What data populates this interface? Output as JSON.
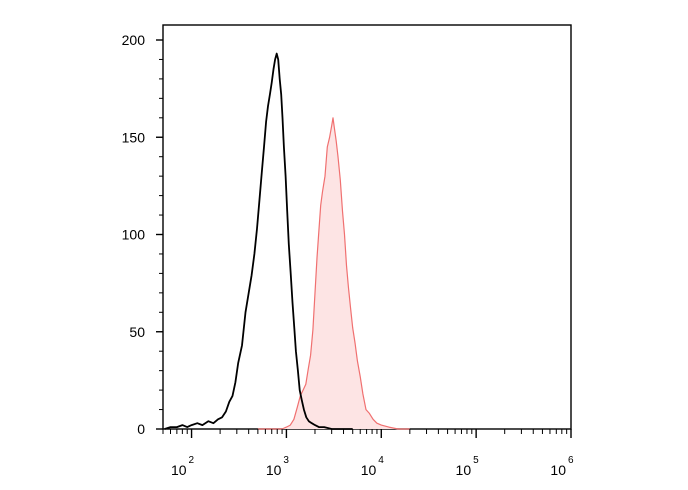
{
  "chart_data": {
    "type": "area",
    "title": "",
    "xlabel": "",
    "ylabel": "",
    "x_scale": "log10",
    "xlim": [
      50,
      1000000
    ],
    "ylim": [
      0,
      200
    ],
    "y_ticks": [
      {
        "value": 0,
        "label": "0"
      },
      {
        "value": 50,
        "label": "50"
      },
      {
        "value": 100,
        "label": "100"
      },
      {
        "value": 150,
        "label": "150"
      },
      {
        "value": 200,
        "label": "200"
      }
    ],
    "x_ticks": [
      {
        "value": 100,
        "base": "10",
        "exp": "2"
      },
      {
        "value": 1000,
        "base": "10",
        "exp": "3"
      },
      {
        "value": 10000,
        "base": "10",
        "exp": "4"
      },
      {
        "value": 100000,
        "base": "10",
        "exp": "5"
      },
      {
        "value": 1000000,
        "base": "10",
        "exp": "6"
      }
    ],
    "grid": false,
    "legend": "none",
    "series": [
      {
        "color": "#000000",
        "fill": "none",
        "points": [
          [
            52,
            0
          ],
          [
            60,
            1
          ],
          [
            70,
            1
          ],
          [
            80,
            2
          ],
          [
            90,
            1
          ],
          [
            100,
            2
          ],
          [
            115,
            3
          ],
          [
            130,
            2
          ],
          [
            150,
            4
          ],
          [
            170,
            3
          ],
          [
            190,
            5
          ],
          [
            210,
            6
          ],
          [
            230,
            9
          ],
          [
            250,
            14
          ],
          [
            270,
            17
          ],
          [
            290,
            24
          ],
          [
            310,
            34
          ],
          [
            340,
            43
          ],
          [
            370,
            60
          ],
          [
            400,
            70
          ],
          [
            430,
            79
          ],
          [
            460,
            90
          ],
          [
            490,
            103
          ],
          [
            520,
            118
          ],
          [
            550,
            132
          ],
          [
            580,
            145
          ],
          [
            610,
            158
          ],
          [
            640,
            166
          ],
          [
            670,
            172
          ],
          [
            700,
            178
          ],
          [
            730,
            185
          ],
          [
            760,
            190
          ],
          [
            790,
            193
          ],
          [
            820,
            190
          ],
          [
            850,
            180
          ],
          [
            880,
            172
          ],
          [
            910,
            160
          ],
          [
            940,
            145
          ],
          [
            980,
            130
          ],
          [
            1020,
            112
          ],
          [
            1060,
            95
          ],
          [
            1110,
            80
          ],
          [
            1160,
            65
          ],
          [
            1210,
            52
          ],
          [
            1260,
            40
          ],
          [
            1320,
            30
          ],
          [
            1380,
            20
          ],
          [
            1450,
            15
          ],
          [
            1530,
            10
          ],
          [
            1620,
            6
          ],
          [
            1720,
            4
          ],
          [
            1850,
            3
          ],
          [
            2000,
            2
          ],
          [
            2200,
            1
          ],
          [
            2500,
            1
          ],
          [
            3000,
            0
          ],
          [
            5000,
            0
          ]
        ]
      },
      {
        "color": "#f07070",
        "fill": "#fde4e4",
        "points": [
          [
            500,
            0
          ],
          [
            900,
            0
          ],
          [
            1000,
            1
          ],
          [
            1100,
            2
          ],
          [
            1200,
            5
          ],
          [
            1300,
            11
          ],
          [
            1400,
            17
          ],
          [
            1500,
            20
          ],
          [
            1600,
            23
          ],
          [
            1700,
            31
          ],
          [
            1800,
            38
          ],
          [
            1900,
            51
          ],
          [
            2000,
            70
          ],
          [
            2100,
            88
          ],
          [
            2200,
            102
          ],
          [
            2300,
            115
          ],
          [
            2400,
            122
          ],
          [
            2550,
            130
          ],
          [
            2700,
            145
          ],
          [
            2850,
            150
          ],
          [
            3000,
            156
          ],
          [
            3100,
            160
          ],
          [
            3200,
            155
          ],
          [
            3350,
            148
          ],
          [
            3500,
            140
          ],
          [
            3700,
            128
          ],
          [
            3900,
            112
          ],
          [
            4100,
            100
          ],
          [
            4300,
            84
          ],
          [
            4500,
            73
          ],
          [
            4750,
            62
          ],
          [
            5000,
            52
          ],
          [
            5300,
            44
          ],
          [
            5600,
            35
          ],
          [
            6000,
            27
          ],
          [
            6400,
            18
          ],
          [
            6900,
            10
          ],
          [
            7500,
            8
          ],
          [
            8200,
            5
          ],
          [
            9000,
            3
          ],
          [
            10000,
            2
          ],
          [
            12000,
            1
          ],
          [
            15000,
            0
          ],
          [
            20000,
            0
          ]
        ]
      }
    ]
  }
}
